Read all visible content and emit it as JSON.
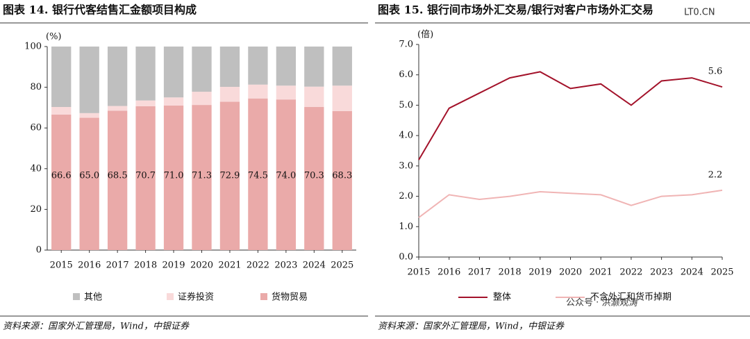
{
  "chart_data": [
    {
      "type": "bar",
      "stacked": true,
      "title": "图表 14. 银行代客结售汇金额项目构成",
      "y_unit": "(%)",
      "categories": [
        "2015",
        "2016",
        "2017",
        "2018",
        "2019",
        "2020",
        "2021",
        "2022",
        "2023",
        "2024",
        "2025"
      ],
      "series": [
        {
          "name": "其他",
          "color": "#bfbfbf",
          "values": [
            29.7,
            32.7,
            29.2,
            26.5,
            25.0,
            22.2,
            19.8,
            18.7,
            19.2,
            19.7,
            19.2
          ]
        },
        {
          "name": "证券投资",
          "color": "#f9dada",
          "values": [
            3.7,
            2.3,
            2.3,
            2.8,
            4.0,
            6.5,
            7.3,
            6.8,
            6.8,
            10.0,
            12.5
          ]
        },
        {
          "name": "货物贸易",
          "color": "#eaaaa9",
          "values": [
            66.6,
            65.0,
            68.5,
            70.7,
            71.0,
            71.3,
            72.9,
            74.5,
            74.0,
            70.3,
            68.3
          ],
          "value_labels": [
            "66.6",
            "65.0",
            "68.5",
            "70.7",
            "71.0",
            "71.3",
            "72.9",
            "74.5",
            "74.0",
            "70.3",
            "68.3"
          ]
        }
      ],
      "ylim": [
        0,
        100
      ],
      "yticks": [
        0,
        20,
        40,
        60,
        80,
        100
      ],
      "source": "资料来源：国家外汇管理局，Wind，中银证券"
    },
    {
      "type": "line",
      "title": "图表 15. 银行间市场外汇交易/银行对客户市场外汇交易",
      "y_unit": "(倍)",
      "categories": [
        "2015",
        "2016",
        "2017",
        "2018",
        "2019",
        "2020",
        "2021",
        "2022",
        "2023",
        "2024",
        "2025"
      ],
      "series": [
        {
          "name": "整体",
          "color": "#a3122a",
          "values": [
            3.2,
            4.9,
            5.4,
            5.9,
            6.1,
            5.55,
            5.7,
            5.0,
            5.8,
            5.9,
            5.6
          ]
        },
        {
          "name": "不含外汇和货币掉期",
          "color": "#f0b4b4",
          "values": [
            1.3,
            2.05,
            1.9,
            2.0,
            2.15,
            2.1,
            2.05,
            1.7,
            2.0,
            2.05,
            2.2
          ]
        }
      ],
      "end_labels": true,
      "ylim": [
        0,
        7
      ],
      "yticks": [
        {
          "value": 0,
          "label": "0.0"
        },
        {
          "value": 1,
          "label": "1.0"
        },
        {
          "value": 2,
          "label": "2.0"
        },
        {
          "value": 3,
          "label": "3.0"
        },
        {
          "value": 4,
          "label": "4.0"
        },
        {
          "value": 5,
          "label": "5.0"
        },
        {
          "value": 6,
          "label": "6.0"
        },
        {
          "value": 7,
          "label": "7.0"
        }
      ],
      "source": "资料来源：国家外汇管理局，Wind，中银证券",
      "watermarks": [
        "LT0.CN",
        "公众号 · 洪灏观涛"
      ]
    }
  ]
}
